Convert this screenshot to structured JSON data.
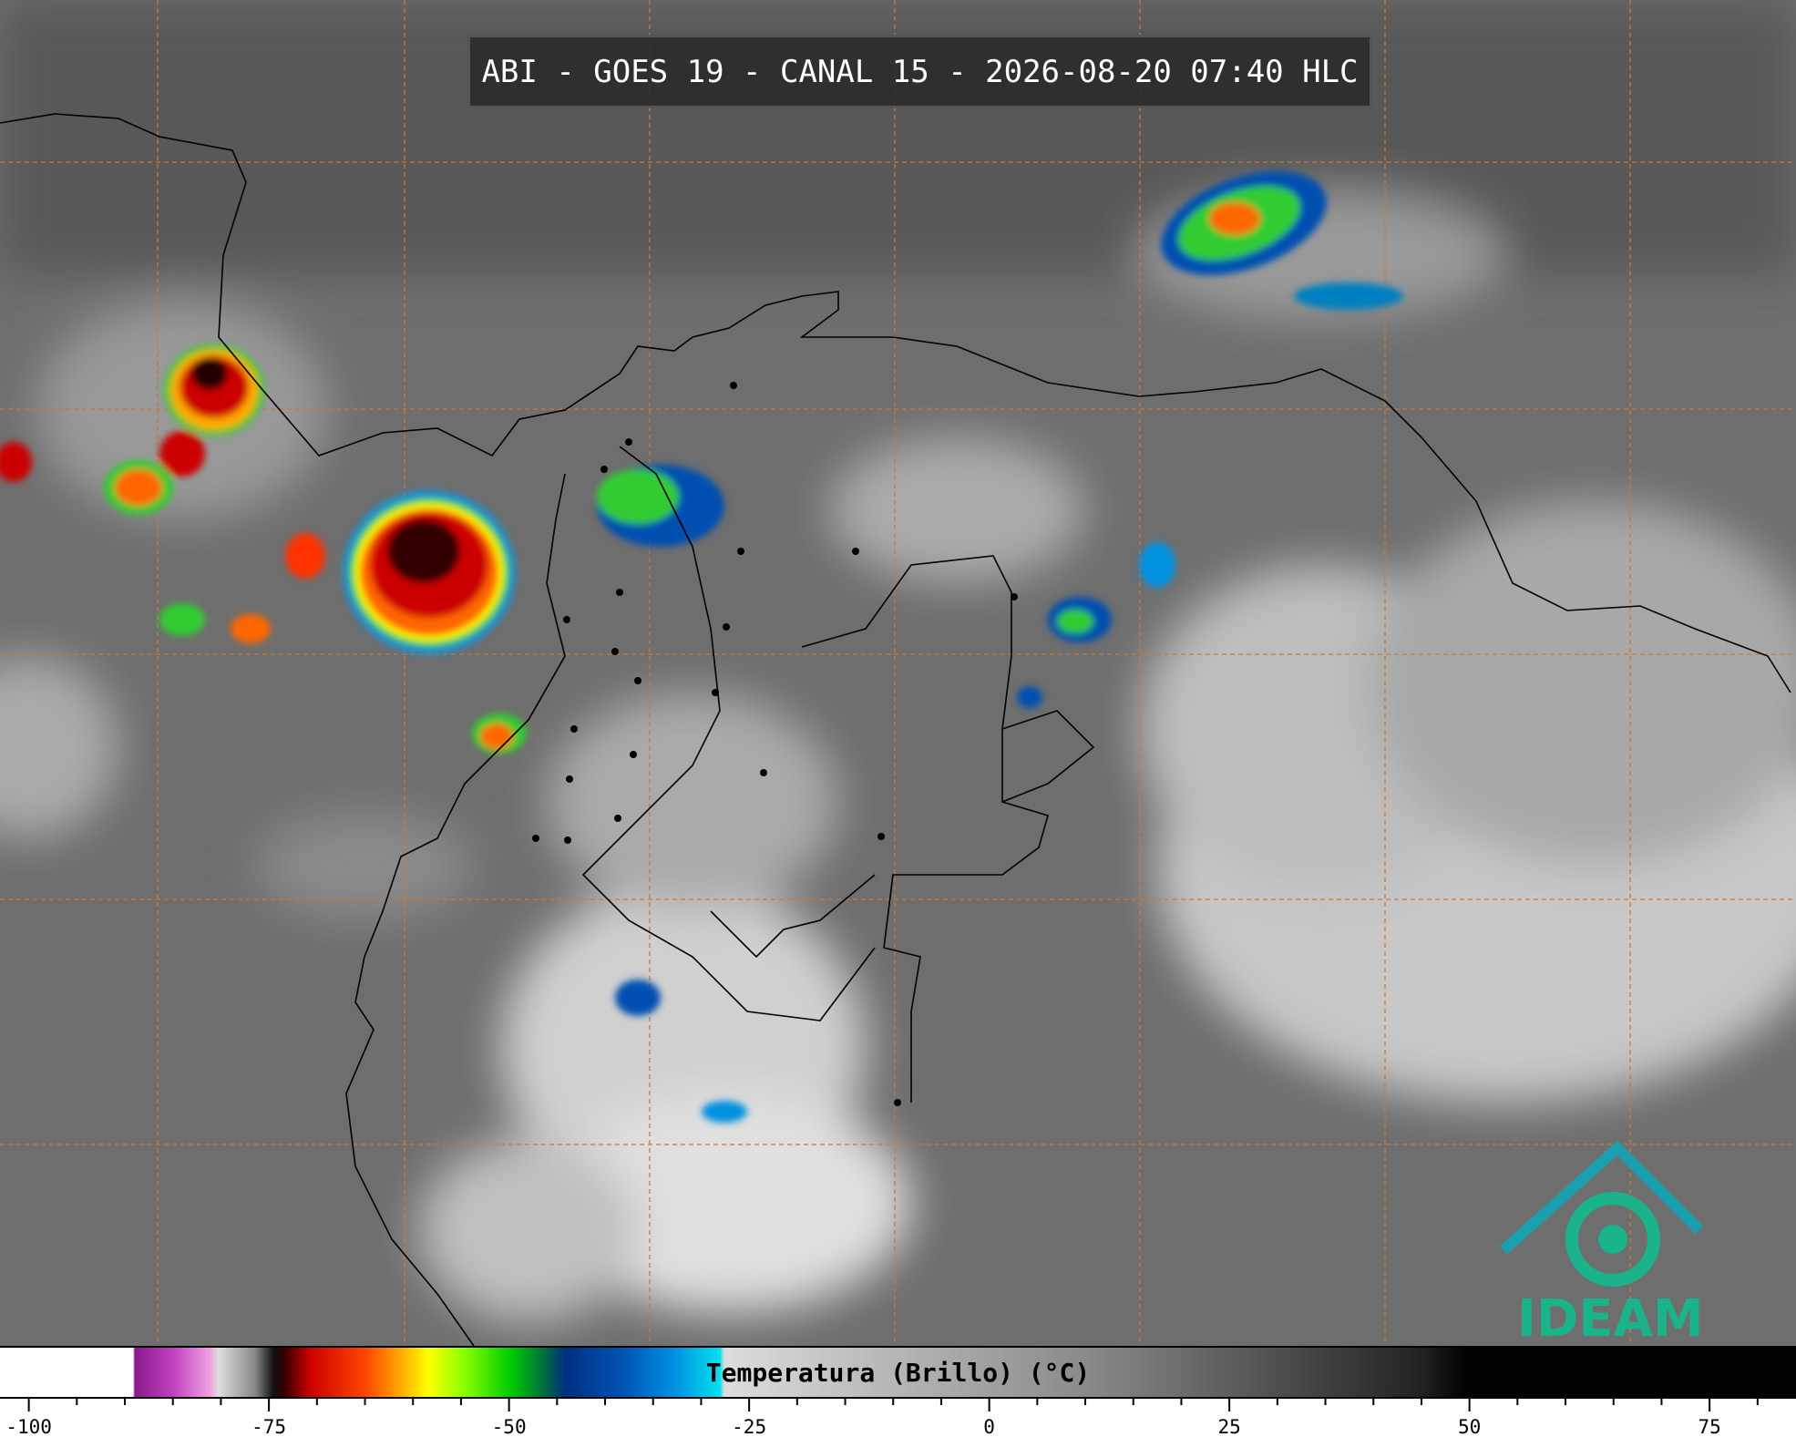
{
  "header": {
    "title": "ABI - GOES 19 - CANAL 15 - 2026-08-20 07:40 HLC"
  },
  "colorbar": {
    "label": "Temperatura (Brillo) (°C)",
    "range": [
      -103,
      84
    ],
    "ticks": [
      -100,
      -75,
      -50,
      -25,
      0,
      25,
      50,
      75
    ],
    "minor_ticks": [
      -95,
      -90,
      -85,
      -80,
      -70,
      -65,
      -60,
      -55,
      -45,
      -40,
      -35,
      -30,
      -20,
      -15,
      -10,
      -5,
      5,
      10,
      15,
      20,
      30,
      35,
      40,
      45,
      55,
      60,
      65,
      70,
      80
    ]
  },
  "logo": {
    "text": "IDEAM"
  }
}
